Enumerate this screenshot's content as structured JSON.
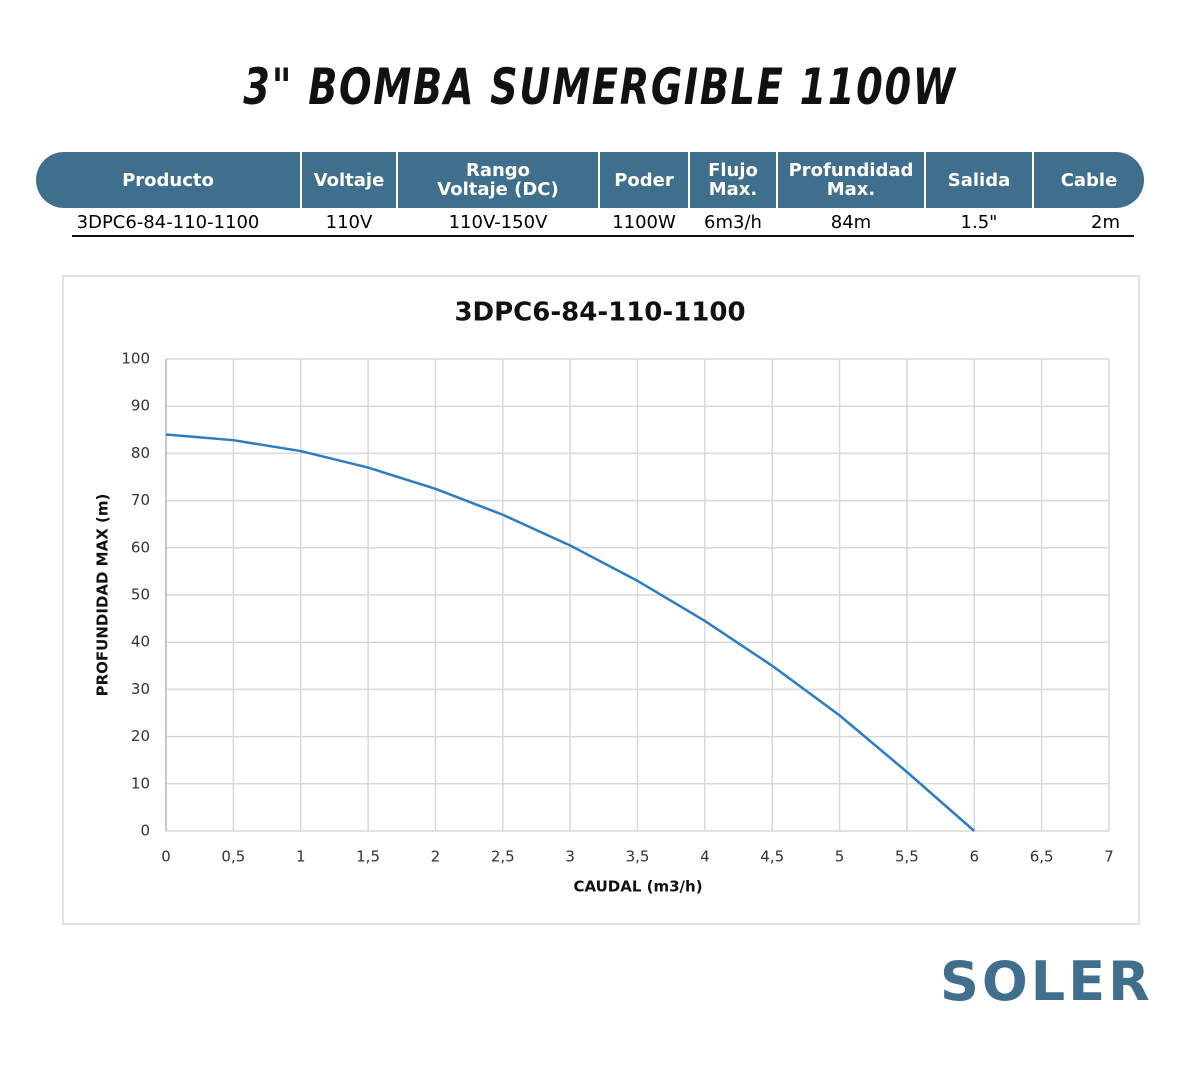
{
  "header": {
    "title": "3\" BOMBA SUMERGIBLE 1100W"
  },
  "table": {
    "headers": [
      "Producto",
      "Voltaje",
      "Rango Voltaje (DC)",
      "Poder",
      "Flujo Max.",
      "Profundidad Max.",
      "Salida",
      "Cable"
    ],
    "rows": [
      [
        "3DPC6-84-110-1100",
        "110V",
        "110V-150V",
        "1100W",
        "6m3/h",
        "84m",
        "1.5\"",
        "2m"
      ]
    ]
  },
  "chart_data": {
    "type": "line",
    "title": "3DPC6-84-110-1100",
    "x_label": "CAUDAL (m3/h)",
    "y_label": "PROFUNDIDAD MAX (m)",
    "x": [
      0,
      0.5,
      1,
      1.5,
      2,
      2.5,
      3,
      3.5,
      4,
      4.5,
      5,
      5.5,
      6
    ],
    "values": [
      84,
      82.8,
      80.5,
      77,
      72.5,
      67,
      60.5,
      53,
      44.5,
      35,
      24.5,
      12.5,
      0
    ],
    "color": "#2a7dc1",
    "grid": true,
    "xlim": [
      0,
      7
    ],
    "xticks": [
      0,
      {
        "value": 0.5,
        "label": "0,5"
      },
      1,
      {
        "value": 1.5,
        "label": "1,5"
      },
      2,
      {
        "value": 2.5,
        "label": "2,5"
      },
      3,
      {
        "value": 3.5,
        "label": "3,5"
      },
      4,
      {
        "value": 4.5,
        "label": "4,5"
      },
      5,
      {
        "value": 5.5,
        "label": "5,5"
      },
      6,
      {
        "value": 6.5,
        "label": "6,5"
      },
      7
    ],
    "ylim": [
      0,
      100
    ],
    "yticks": [
      0,
      10,
      20,
      30,
      40,
      50,
      60,
      70,
      80,
      90,
      100
    ]
  },
  "logo": {
    "text": "SOLER"
  }
}
